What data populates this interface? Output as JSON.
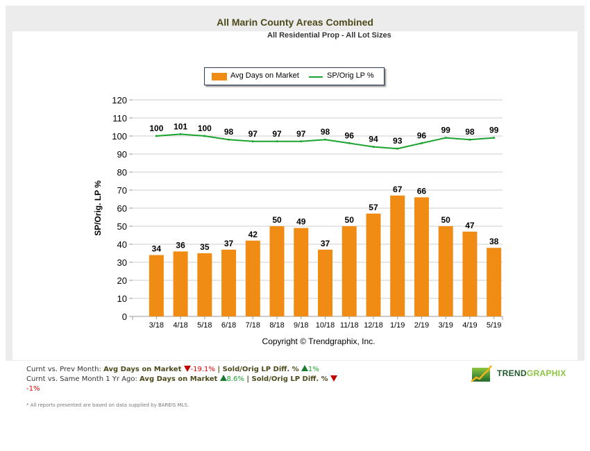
{
  "header": {
    "title": "All Marin County Areas Combined",
    "subtitle": "All Residential Prop - All Lot Sizes"
  },
  "legend": {
    "bar_label": "Avg Days on Market",
    "line_label": "SP/Orig LP %"
  },
  "copyright": "Copyright © Trendgraphix, Inc.",
  "summary": {
    "row1_prefix": "Curnt vs. Prev Month: ",
    "row1_metric1": "Avg Days on Market",
    "row1_value1": "-19.1%",
    "row1_sep": " | ",
    "row1_metric2": "Sold/Orig LP Diff. %",
    "row1_value2": "1%",
    "row2_prefix": "Curnt vs. Same Month 1 Yr Ago: ",
    "row2_metric1": "Avg Days on Market",
    "row2_value1": "8.6%",
    "row2_sep": " | ",
    "row2_metric2": "Sold/Orig LP Diff. %",
    "row2_value2": "-1%"
  },
  "footnote": "* All reports presented are based on data supplied by BAREIS MLS.",
  "logo": {
    "text1": "TREND",
    "text2": "GRAPHIX"
  },
  "colors": {
    "bar": "#f08c14",
    "line": "#1aa32e",
    "grid": "#cccccc",
    "title": "#4d4a1b"
  },
  "chart_data": {
    "type": "bar",
    "title": "All Marin County Areas Combined",
    "subtitle": "All Residential Prop - All Lot Sizes",
    "xlabel": "",
    "ylabel": "SP/Orig. LP %",
    "ylim": [
      0,
      120
    ],
    "yticks": [
      0,
      10,
      20,
      30,
      40,
      50,
      60,
      70,
      80,
      90,
      100,
      110,
      120
    ],
    "grid": true,
    "legend_position": "top-center",
    "categories": [
      "3/18",
      "4/18",
      "5/18",
      "6/18",
      "7/18",
      "8/18",
      "9/18",
      "10/18",
      "11/18",
      "12/18",
      "1/19",
      "2/19",
      "3/19",
      "4/19",
      "5/19"
    ],
    "series": [
      {
        "name": "Avg Days on Market",
        "type": "bar",
        "values": [
          34,
          36,
          35,
          37,
          42,
          50,
          49,
          37,
          50,
          57,
          67,
          66,
          50,
          47,
          38
        ]
      },
      {
        "name": "SP/Orig LP %",
        "type": "line",
        "values": [
          100,
          101,
          100,
          98,
          97,
          97,
          97,
          98,
          96,
          94,
          93,
          96,
          99,
          98,
          99
        ]
      }
    ]
  }
}
